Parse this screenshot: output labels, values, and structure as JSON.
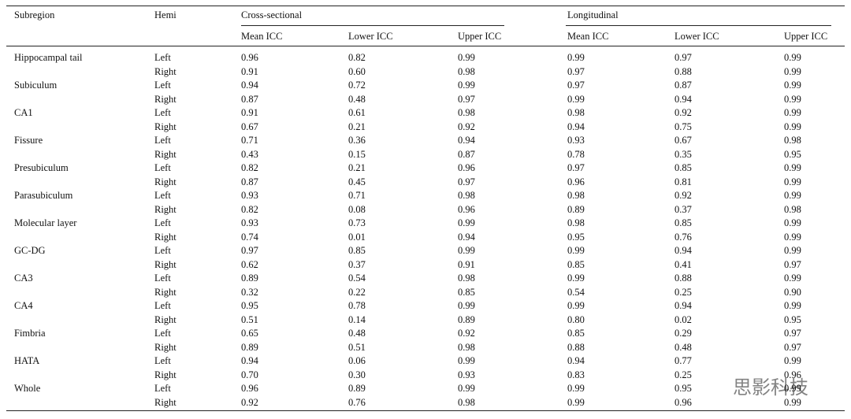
{
  "table": {
    "header": {
      "subregion": "Subregion",
      "hemi": "Hemi",
      "groups": [
        "Cross-sectional",
        "Longitudinal"
      ],
      "columns": [
        "Mean ICC",
        "Lower ICC",
        "Upper ICC",
        "Mean ICC",
        "Lower ICC",
        "Upper ICC"
      ]
    },
    "groups": [
      {
        "subregion": "Hippocampal tail",
        "rows": [
          {
            "hemi": "Left",
            "values": [
              "0.96",
              "0.82",
              "0.99",
              "0.99",
              "0.97",
              "0.99"
            ]
          },
          {
            "hemi": "Right",
            "values": [
              "0.91",
              "0.60",
              "0.98",
              "0.97",
              "0.88",
              "0.99"
            ]
          }
        ]
      },
      {
        "subregion": "Subiculum",
        "rows": [
          {
            "hemi": "Left",
            "values": [
              "0.94",
              "0.72",
              "0.99",
              "0.97",
              "0.87",
              "0.99"
            ]
          },
          {
            "hemi": "Right",
            "values": [
              "0.87",
              "0.48",
              "0.97",
              "0.99",
              "0.94",
              "0.99"
            ]
          }
        ]
      },
      {
        "subregion": "CA1",
        "rows": [
          {
            "hemi": "Left",
            "values": [
              "0.91",
              "0.61",
              "0.98",
              "0.98",
              "0.92",
              "0.99"
            ]
          },
          {
            "hemi": "Right",
            "values": [
              "0.67",
              "0.21",
              "0.92",
              "0.94",
              "0.75",
              "0.99"
            ]
          }
        ]
      },
      {
        "subregion": "Fissure",
        "rows": [
          {
            "hemi": "Left",
            "values": [
              "0.71",
              "0.36",
              "0.94",
              "0.93",
              "0.67",
              "0.98"
            ]
          },
          {
            "hemi": "Right",
            "values": [
              "0.43",
              "0.15",
              "0.87",
              "0.78",
              "0.35",
              "0.95"
            ]
          }
        ]
      },
      {
        "subregion": "Presubiculum",
        "rows": [
          {
            "hemi": "Left",
            "values": [
              "0.82",
              "0.21",
              "0.96",
              "0.97",
              "0.85",
              "0.99"
            ]
          },
          {
            "hemi": "Right",
            "values": [
              "0.87",
              "0.45",
              "0.97",
              "0.96",
              "0.81",
              "0.99"
            ]
          }
        ]
      },
      {
        "subregion": "Parasubiculum",
        "rows": [
          {
            "hemi": "Left",
            "values": [
              "0.93",
              "0.71",
              "0.98",
              "0.98",
              "0.92",
              "0.99"
            ]
          },
          {
            "hemi": "Right",
            "values": [
              "0.82",
              "0.08",
              "0.96",
              "0.89",
              "0.37",
              "0.98"
            ]
          }
        ]
      },
      {
        "subregion": "Molecular layer",
        "rows": [
          {
            "hemi": "Left",
            "values": [
              "0.93",
              "0.73",
              "0.99",
              "0.98",
              "0.85",
              "0.99"
            ]
          },
          {
            "hemi": "Right",
            "values": [
              "0.74",
              "0.01",
              "0.94",
              "0.95",
              "0.76",
              "0.99"
            ]
          }
        ]
      },
      {
        "subregion": "GC-DG",
        "rows": [
          {
            "hemi": "Left",
            "values": [
              "0.97",
              "0.85",
              "0.99",
              "0.99",
              "0.94",
              "0.99"
            ]
          },
          {
            "hemi": "Right",
            "values": [
              "0.62",
              "0.37",
              "0.91",
              "0.85",
              "0.41",
              "0.97"
            ]
          }
        ]
      },
      {
        "subregion": "CA3",
        "rows": [
          {
            "hemi": "Left",
            "values": [
              "0.89",
              "0.54",
              "0.98",
              "0.99",
              "0.88",
              "0.99"
            ]
          },
          {
            "hemi": "Right",
            "values": [
              "0.32",
              "0.22",
              "0.85",
              "0.54",
              "0.25",
              "0.90"
            ]
          }
        ]
      },
      {
        "subregion": "CA4",
        "rows": [
          {
            "hemi": "Left",
            "values": [
              "0.95",
              "0.78",
              "0.99",
              "0.99",
              "0.94",
              "0.99"
            ]
          },
          {
            "hemi": "Right",
            "values": [
              "0.51",
              "0.14",
              "0.89",
              "0.80",
              "0.02",
              "0.95"
            ]
          }
        ]
      },
      {
        "subregion": "Fimbria",
        "rows": [
          {
            "hemi": "Left",
            "values": [
              "0.65",
              "0.48",
              "0.92",
              "0.85",
              "0.29",
              "0.97"
            ]
          },
          {
            "hemi": "Right",
            "values": [
              "0.89",
              "0.51",
              "0.98",
              "0.88",
              "0.48",
              "0.97"
            ]
          }
        ]
      },
      {
        "subregion": "HATA",
        "rows": [
          {
            "hemi": "Left",
            "values": [
              "0.94",
              "0.06",
              "0.99",
              "0.94",
              "0.77",
              "0.99"
            ]
          },
          {
            "hemi": "Right",
            "values": [
              "0.70",
              "0.30",
              "0.93",
              "0.83",
              "0.25",
              "0.96"
            ]
          }
        ]
      },
      {
        "subregion": "Whole",
        "rows": [
          {
            "hemi": "Left",
            "values": [
              "0.96",
              "0.89",
              "0.99",
              "0.99",
              "0.95",
              "0.99"
            ]
          },
          {
            "hemi": "Right",
            "values": [
              "0.92",
              "0.76",
              "0.98",
              "0.99",
              "0.96",
              "0.99"
            ]
          }
        ]
      }
    ]
  },
  "watermark": "思影科技"
}
